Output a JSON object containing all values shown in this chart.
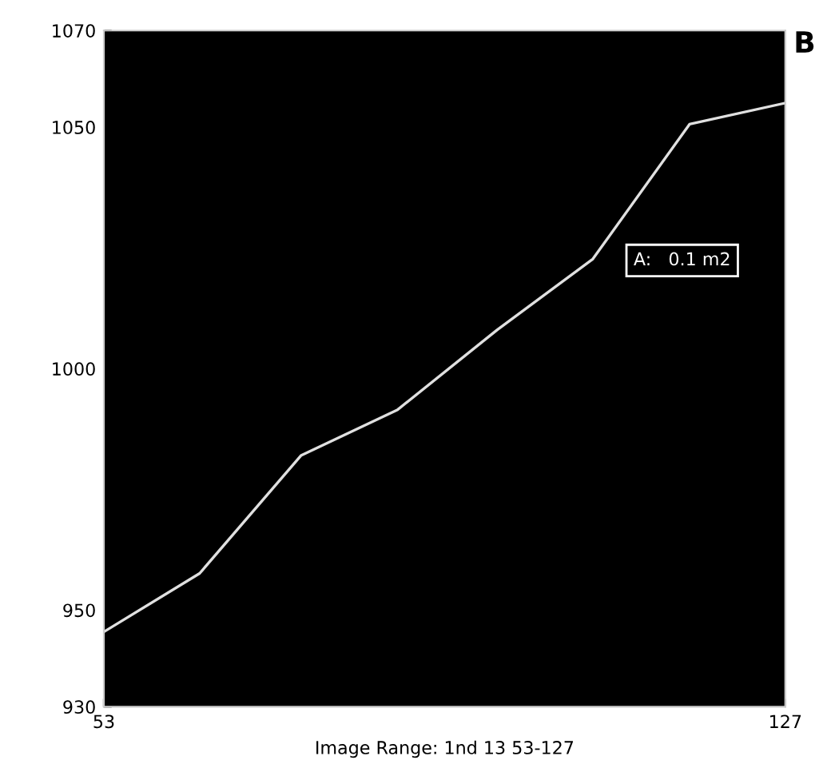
{
  "chart_data": {
    "type": "line",
    "xlabel": "Image Range: 1nd 13 53-127",
    "x": [
      53,
      63.4,
      74.4,
      84.9,
      95.7,
      106.1,
      116.6,
      127
    ],
    "series": [
      {
        "color": "#e0e0e0",
        "values": [
          945.5,
          957.6,
          982,
          991.5,
          1008,
          1022.7,
          1050.6,
          1055
        ]
      }
    ],
    "xlim": [
      53,
      127
    ],
    "xticks": [
      53,
      127
    ],
    "ylim": [
      930,
      1070
    ],
    "yticks": [
      930,
      950,
      1000,
      1050,
      1070
    ],
    "annotations": [
      "B",
      "A:   0.1 m2"
    ],
    "grid": false,
    "legend": false,
    "marker": "none",
    "line_style": "solid"
  }
}
